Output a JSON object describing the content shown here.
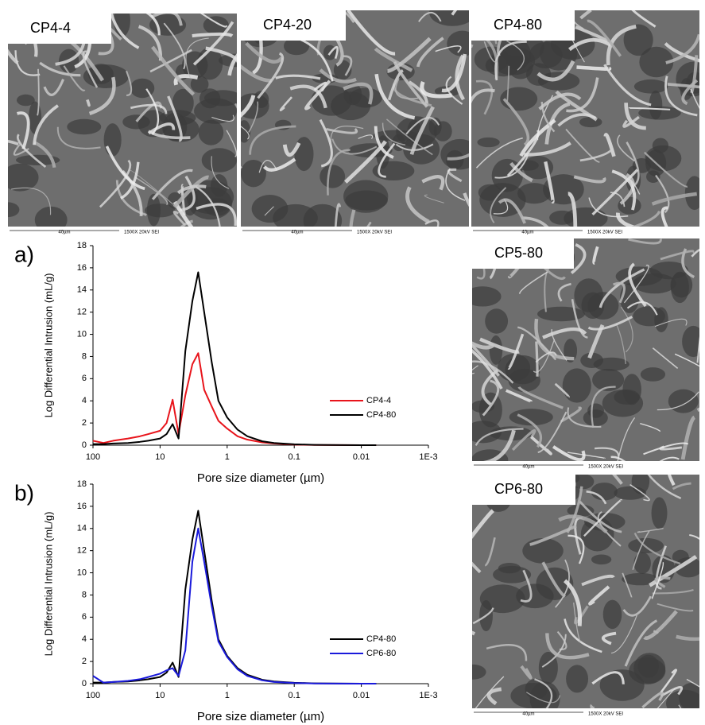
{
  "images": [
    {
      "label": "CP4-4",
      "scale": "40µm",
      "info": "1500X 20kV SEI"
    },
    {
      "label": "CP4-20",
      "scale": "40µm",
      "info": "1500X 20kV SEI"
    },
    {
      "label": "CP4-80",
      "scale": "40µm",
      "info": "1500X 20kV SEI"
    },
    {
      "label": "CP5-80",
      "scale": "40µm",
      "info": "1500X 20kV SEI"
    },
    {
      "label": "CP6-80",
      "scale": "40µm",
      "info": "1500X 20kV SEI"
    }
  ],
  "chart_data": [
    {
      "type": "line",
      "panel_label": "a)",
      "x_label": "Pore size diameter (µm)",
      "y_label": "Log Differential Intrusion (mL/g)",
      "xscale": "log",
      "xlim": [
        100,
        0.001
      ],
      "xticks": [
        100,
        10,
        1,
        0.1,
        0.01,
        {
          "value": 0.001,
          "label": "1E-3"
        }
      ],
      "ylim": [
        0,
        18
      ],
      "yticks": [
        0,
        2,
        4,
        6,
        8,
        10,
        12,
        14,
        16,
        18
      ],
      "legend": "lower right",
      "x": [
        100,
        70,
        50,
        30,
        20,
        15,
        10,
        8,
        6.5,
        5.3,
        4.2,
        3.3,
        2.7,
        2.2,
        1.7,
        1.35,
        1.0,
        0.7,
        0.5,
        0.3,
        0.2,
        0.1,
        0.05,
        0.02,
        0.01,
        0.006
      ],
      "series": [
        {
          "name": "CP4-4",
          "color": "#e8141b",
          "values": [
            0.4,
            0.2,
            0.4,
            0.6,
            0.8,
            1.0,
            1.3,
            2.0,
            4.1,
            1.0,
            4.5,
            7.3,
            8.3,
            5.0,
            3.5,
            2.2,
            1.5,
            0.8,
            0.5,
            0.25,
            0.15,
            0.05,
            0.02,
            0.01,
            0,
            0
          ]
        },
        {
          "name": "CP4-80",
          "color": "#000000",
          "values": [
            0.1,
            0.1,
            0.15,
            0.2,
            0.3,
            0.4,
            0.6,
            1.0,
            1.9,
            0.6,
            8.5,
            13.0,
            15.6,
            12.0,
            7.5,
            4.0,
            2.5,
            1.4,
            0.8,
            0.35,
            0.2,
            0.08,
            0.03,
            0.01,
            0,
            0
          ]
        }
      ]
    },
    {
      "type": "line",
      "panel_label": "b)",
      "x_label": "Pore size diameter (µm)",
      "y_label": "Log Differential Intrusion (mL/g)",
      "xscale": "log",
      "xlim": [
        100,
        0.001
      ],
      "xticks": [
        100,
        10,
        1,
        0.1,
        0.01,
        {
          "value": 0.001,
          "label": "1E-3"
        }
      ],
      "ylim": [
        0,
        18
      ],
      "yticks": [
        0,
        2,
        4,
        6,
        8,
        10,
        12,
        14,
        16,
        18
      ],
      "legend": "lower right",
      "x": [
        100,
        70,
        50,
        30,
        20,
        15,
        10,
        8,
        6.5,
        5.3,
        4.2,
        3.3,
        2.7,
        2.2,
        1.7,
        1.35,
        1.0,
        0.7,
        0.5,
        0.3,
        0.2,
        0.1,
        0.05,
        0.02,
        0.01,
        0.006
      ],
      "series": [
        {
          "name": "CP4-80",
          "color": "#000000",
          "values": [
            0.1,
            0.1,
            0.15,
            0.2,
            0.3,
            0.4,
            0.6,
            1.0,
            1.9,
            0.6,
            8.5,
            13.0,
            15.6,
            12.0,
            7.5,
            4.0,
            2.5,
            1.4,
            0.8,
            0.35,
            0.2,
            0.08,
            0.03,
            0.01,
            0,
            0
          ]
        },
        {
          "name": "CP6-80",
          "color": "#1a1adb",
          "values": [
            0.7,
            0.1,
            0.15,
            0.25,
            0.4,
            0.6,
            0.9,
            1.2,
            1.4,
            0.7,
            3.0,
            11.0,
            14.0,
            11.0,
            7.0,
            3.8,
            2.4,
            1.3,
            0.7,
            0.3,
            0.15,
            0.06,
            0.02,
            0.01,
            0,
            0
          ]
        }
      ]
    }
  ]
}
